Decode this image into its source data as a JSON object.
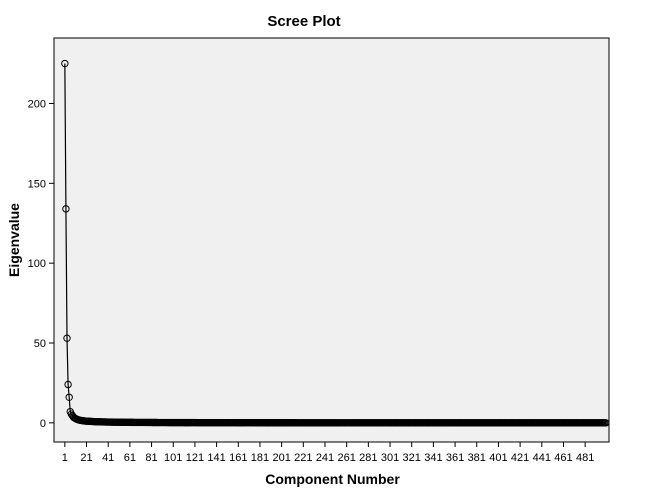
{
  "chart_data": {
    "type": "scatter",
    "title": "Scree Plot",
    "xlabel": "Component Number",
    "ylabel": "Eigenvalue",
    "x_ticks": [
      1,
      21,
      41,
      61,
      81,
      101,
      121,
      141,
      161,
      181,
      201,
      221,
      241,
      261,
      281,
      301,
      321,
      341,
      361,
      381,
      401,
      421,
      441,
      461,
      481
    ],
    "y_ticks": [
      0,
      50,
      100,
      150,
      200
    ],
    "xlim": [
      -9,
      503
    ],
    "ylim": [
      -12,
      241
    ],
    "connected_line": true,
    "grid": false,
    "n_components": 500,
    "points": [
      {
        "x": 1,
        "y": 225
      },
      {
        "x": 2,
        "y": 134
      },
      {
        "x": 3,
        "y": 53
      },
      {
        "x": 4,
        "y": 24
      },
      {
        "x": 5,
        "y": 16
      },
      {
        "x": 6,
        "y": 7
      },
      {
        "x": 7,
        "y": 5.5
      },
      {
        "x": 8,
        "y": 4.5
      },
      {
        "x": 9,
        "y": 3.5
      },
      {
        "x": 10,
        "y": 3
      },
      {
        "x": 11,
        "y": 2.6
      },
      {
        "x": 12,
        "y": 2.3
      },
      {
        "x": 13,
        "y": 2
      },
      {
        "x": 14,
        "y": 1.8
      },
      {
        "x": 15,
        "y": 1.6
      },
      {
        "x": 16,
        "y": 1.5
      },
      {
        "x": 17,
        "y": 1.4
      },
      {
        "x": 18,
        "y": 1.3
      },
      {
        "x": 19,
        "y": 1.2
      },
      {
        "x": 20,
        "y": 1.1
      },
      {
        "x": 25,
        "y": 0.9
      },
      {
        "x": 30,
        "y": 0.7
      },
      {
        "x": 40,
        "y": 0.5
      },
      {
        "x": 60,
        "y": 0.3
      },
      {
        "x": 100,
        "y": 0.15
      },
      {
        "x": 200,
        "y": 0.05
      },
      {
        "x": 300,
        "y": 0.02
      },
      {
        "x": 400,
        "y": 0.01
      },
      {
        "x": 500,
        "y": 0
      }
    ],
    "plot_background": "#f0f0f0",
    "marker_color": "#000000",
    "line_color": "#000000"
  }
}
